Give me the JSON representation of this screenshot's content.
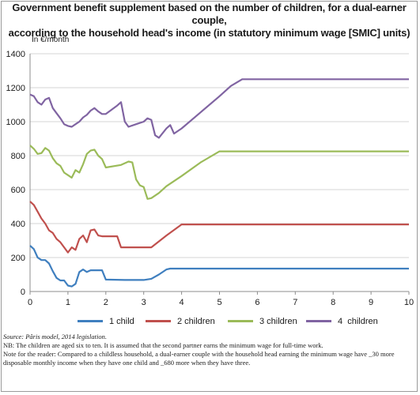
{
  "title_line1": "Government benefit supplement based on the number of children, for a dual-earner couple,",
  "title_line2": "according to the household head's income (in statutory minimum wage [SMIC] units)",
  "y_unit": "In €/month",
  "source": "Source: Pâris model, 2014 legislation.",
  "note1": "NB: The children are aged six to ten. It is assumed that the second partner earns the minimum wage for full-time work.",
  "note2": "Note for the reader: Compared to a childless household, a dual-earner couple with the household head earning the minimum wage have _30 more disposable monthly income when they have one child and _680 more when they have three.",
  "chart_data": {
    "type": "line",
    "title": "Government benefit supplement based on the number of children, for a dual-earner couple, according to the household head's income (in statutory minimum wage [SMIC] units)",
    "ylabel": "In €/month",
    "xlabel": "",
    "xlim": [
      0,
      10
    ],
    "ylim": [
      0,
      1400
    ],
    "xticks": [
      0,
      1,
      2,
      3,
      4,
      5,
      6,
      7,
      8,
      9,
      10
    ],
    "yticks": [
      0,
      200,
      400,
      600,
      800,
      1000,
      1200,
      1400
    ],
    "grid": "horizontal",
    "legend_position": "bottom",
    "series": [
      {
        "name": "1 child",
        "color": "#3f7fbf",
        "points": [
          [
            0,
            270
          ],
          [
            0.1,
            250
          ],
          [
            0.2,
            200
          ],
          [
            0.3,
            185
          ],
          [
            0.4,
            185
          ],
          [
            0.5,
            165
          ],
          [
            0.6,
            120
          ],
          [
            0.7,
            80
          ],
          [
            0.8,
            65
          ],
          [
            0.9,
            65
          ],
          [
            1.0,
            35
          ],
          [
            1.1,
            30
          ],
          [
            1.2,
            45
          ],
          [
            1.3,
            115
          ],
          [
            1.4,
            130
          ],
          [
            1.5,
            115
          ],
          [
            1.6,
            125
          ],
          [
            1.7,
            125
          ],
          [
            1.8,
            125
          ],
          [
            1.9,
            125
          ],
          [
            2.0,
            70
          ],
          [
            2.5,
            68
          ],
          [
            3.0,
            68
          ],
          [
            3.2,
            75
          ],
          [
            3.4,
            100
          ],
          [
            3.6,
            130
          ],
          [
            3.7,
            135
          ],
          [
            4.0,
            135
          ],
          [
            10,
            135
          ]
        ]
      },
      {
        "name": "2 children",
        "color": "#c0504d",
        "points": [
          [
            0,
            530
          ],
          [
            0.1,
            510
          ],
          [
            0.2,
            470
          ],
          [
            0.3,
            430
          ],
          [
            0.4,
            400
          ],
          [
            0.5,
            360
          ],
          [
            0.6,
            345
          ],
          [
            0.7,
            310
          ],
          [
            0.8,
            290
          ],
          [
            0.9,
            260
          ],
          [
            1.0,
            230
          ],
          [
            1.1,
            260
          ],
          [
            1.2,
            245
          ],
          [
            1.3,
            310
          ],
          [
            1.4,
            330
          ],
          [
            1.5,
            290
          ],
          [
            1.6,
            360
          ],
          [
            1.7,
            365
          ],
          [
            1.8,
            330
          ],
          [
            1.9,
            325
          ],
          [
            2.0,
            325
          ],
          [
            2.2,
            325
          ],
          [
            2.3,
            325
          ],
          [
            2.4,
            260
          ],
          [
            3.0,
            260
          ],
          [
            3.2,
            260
          ],
          [
            3.6,
            330
          ],
          [
            4.0,
            395
          ],
          [
            10,
            395
          ]
        ]
      },
      {
        "name": "3 children",
        "color": "#9bbb59",
        "points": [
          [
            0,
            860
          ],
          [
            0.1,
            840
          ],
          [
            0.2,
            810
          ],
          [
            0.3,
            815
          ],
          [
            0.4,
            845
          ],
          [
            0.5,
            830
          ],
          [
            0.6,
            785
          ],
          [
            0.7,
            755
          ],
          [
            0.8,
            740
          ],
          [
            0.9,
            700
          ],
          [
            1.0,
            685
          ],
          [
            1.1,
            670
          ],
          [
            1.2,
            715
          ],
          [
            1.3,
            700
          ],
          [
            1.4,
            750
          ],
          [
            1.5,
            810
          ],
          [
            1.6,
            830
          ],
          [
            1.7,
            835
          ],
          [
            1.8,
            800
          ],
          [
            1.9,
            780
          ],
          [
            2.0,
            730
          ],
          [
            2.4,
            745
          ],
          [
            2.6,
            765
          ],
          [
            2.7,
            760
          ],
          [
            2.8,
            660
          ],
          [
            2.9,
            625
          ],
          [
            3.0,
            615
          ],
          [
            3.1,
            545
          ],
          [
            3.2,
            550
          ],
          [
            3.4,
            580
          ],
          [
            3.6,
            620
          ],
          [
            4.0,
            680
          ],
          [
            4.5,
            760
          ],
          [
            5.0,
            825
          ],
          [
            10,
            825
          ]
        ]
      },
      {
        "name": "4  children",
        "color": "#8064a2",
        "points": [
          [
            0,
            1160
          ],
          [
            0.1,
            1150
          ],
          [
            0.2,
            1115
          ],
          [
            0.3,
            1100
          ],
          [
            0.4,
            1130
          ],
          [
            0.5,
            1140
          ],
          [
            0.6,
            1080
          ],
          [
            0.7,
            1050
          ],
          [
            0.8,
            1020
          ],
          [
            0.9,
            985
          ],
          [
            1.0,
            975
          ],
          [
            1.1,
            970
          ],
          [
            1.2,
            985
          ],
          [
            1.3,
            1000
          ],
          [
            1.4,
            1025
          ],
          [
            1.5,
            1040
          ],
          [
            1.6,
            1065
          ],
          [
            1.7,
            1080
          ],
          [
            1.8,
            1060
          ],
          [
            1.9,
            1045
          ],
          [
            2.0,
            1045
          ],
          [
            2.3,
            1095
          ],
          [
            2.4,
            1115
          ],
          [
            2.5,
            1000
          ],
          [
            2.6,
            970
          ],
          [
            2.8,
            985
          ],
          [
            3.0,
            1000
          ],
          [
            3.1,
            1020
          ],
          [
            3.2,
            1010
          ],
          [
            3.3,
            920
          ],
          [
            3.4,
            905
          ],
          [
            3.6,
            960
          ],
          [
            3.7,
            980
          ],
          [
            3.8,
            930
          ],
          [
            4.0,
            960
          ],
          [
            4.5,
            1055
          ],
          [
            5.0,
            1150
          ],
          [
            5.3,
            1210
          ],
          [
            5.6,
            1250
          ],
          [
            10,
            1250
          ]
        ]
      }
    ]
  }
}
